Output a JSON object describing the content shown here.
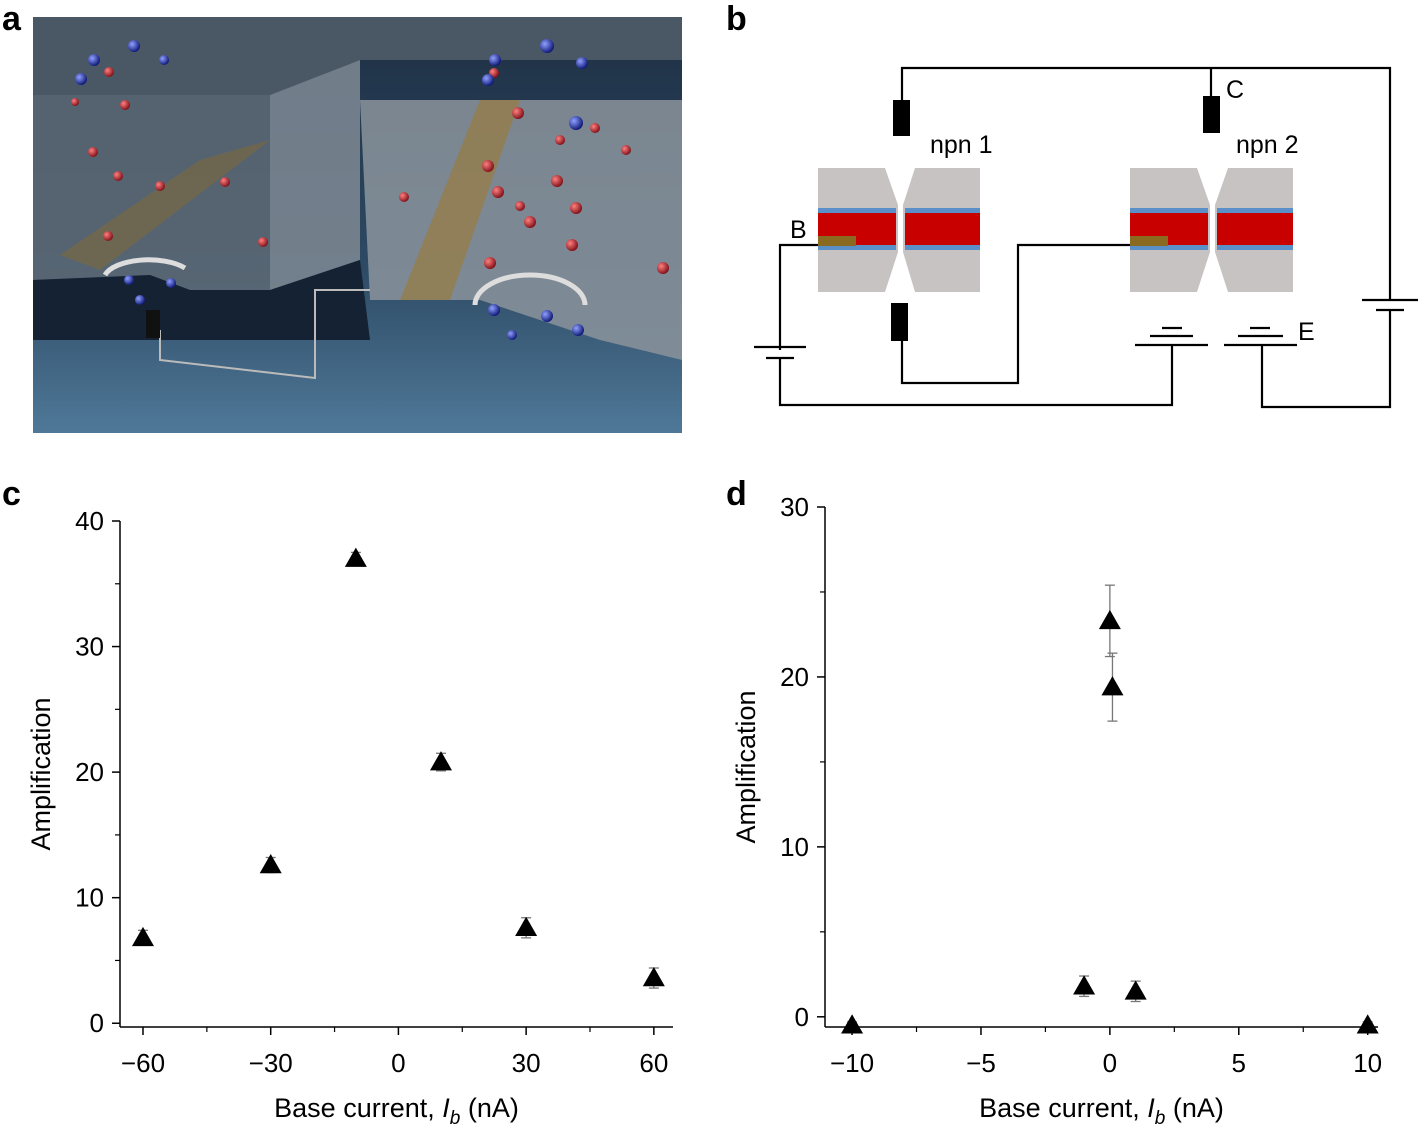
{
  "panel_labels": [
    "a",
    "b",
    "c",
    "d"
  ],
  "diagram": {
    "labels": {
      "npn1": "npn 1",
      "npn2": "npn 2",
      "B": "B",
      "C": "C",
      "E": "E"
    }
  },
  "chart_data": [
    {
      "type": "scatter",
      "marker": "triangle",
      "color": "#000000",
      "error_color": "#777777",
      "x": [
        -60,
        -30,
        -10,
        10,
        30,
        60
      ],
      "values": [
        6.8,
        12.6,
        37,
        20.8,
        7.6,
        3.6
      ],
      "errors": [
        0.6,
        0.6,
        0.5,
        0.7,
        0.8,
        0.8
      ],
      "xlim": [
        -65.4,
        64.5
      ],
      "ylim": [
        -0.3,
        40
      ],
      "xticks": [
        {
          "value": -60,
          "label": "−60"
        },
        {
          "value": -30,
          "label": "−30"
        },
        0,
        30,
        60
      ],
      "xminor": [
        -45,
        -15,
        15,
        45
      ],
      "yticks": [
        0,
        10,
        20,
        30,
        40
      ],
      "yminor": [
        5,
        15,
        25,
        35
      ],
      "ylabel": "Amplification",
      "xlabel": {
        "text": "Base current, ",
        "var": "I",
        "sub": "b",
        "unit": " (nA)"
      }
    },
    {
      "type": "scatter",
      "marker": "triangle",
      "color": "#000000",
      "error_color": "#777777",
      "x": [
        -10,
        -1,
        0,
        0.1,
        1,
        10
      ],
      "values": [
        -0.5,
        1.8,
        23.3,
        19.4,
        1.5,
        -0.5
      ],
      "errors": [
        0.2,
        0.6,
        2.1,
        2.0,
        0.6,
        0.2
      ],
      "xlim": [
        -11.05,
        10.4
      ],
      "ylim": [
        -0.6,
        30
      ],
      "xticks": [
        {
          "value": -10,
          "label": "−10"
        },
        {
          "value": -5,
          "label": "−5"
        },
        0,
        5,
        10
      ],
      "xminor": [
        -7.5,
        -2.5,
        2.5,
        7.5
      ],
      "yticks": [
        0,
        10,
        20,
        30
      ],
      "yminor": [
        5,
        15,
        25
      ],
      "ylabel": "Amplification",
      "xlabel": {
        "text": "Base current, ",
        "var": "I",
        "sub": "b",
        "unit": " (nA)"
      }
    }
  ]
}
